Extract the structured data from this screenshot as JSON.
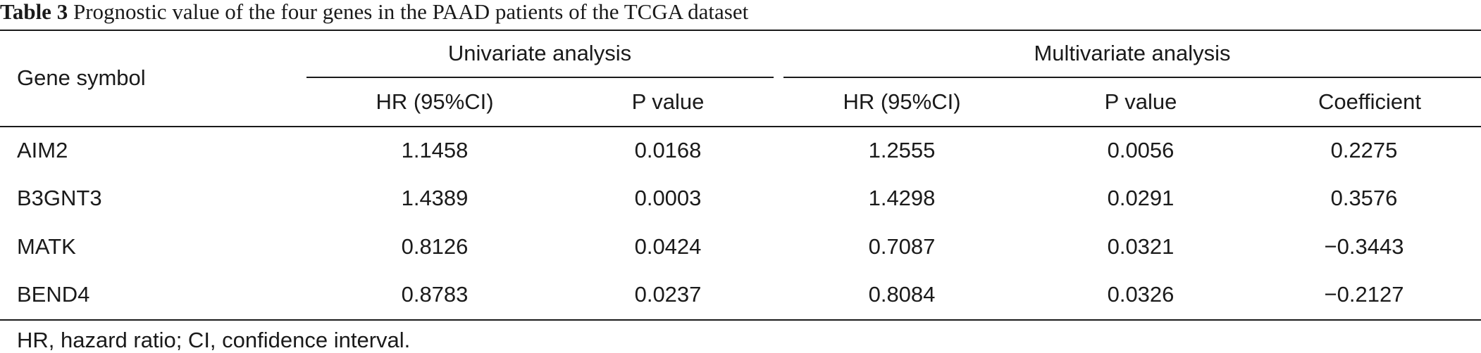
{
  "caption": {
    "label": "Table 3",
    "text": "Prognostic value of the four genes in the PAAD patients of the TCGA dataset"
  },
  "header": {
    "gene_symbol": "Gene symbol",
    "univariate": "Univariate analysis",
    "multivariate": "Multivariate analysis",
    "uni_hr": "HR (95%CI)",
    "uni_p": "P value",
    "multi_hr": "HR (95%CI)",
    "multi_p": "P value",
    "coefficient": "Coefficient"
  },
  "rows": [
    {
      "gene": "AIM2",
      "uni_hr": "1.1458",
      "uni_p": "0.0168",
      "multi_hr": "1.2555",
      "multi_p": "0.0056",
      "coef": "0.2275"
    },
    {
      "gene": "B3GNT3",
      "uni_hr": "1.4389",
      "uni_p": "0.0003",
      "multi_hr": "1.4298",
      "multi_p": "0.0291",
      "coef": "0.3576"
    },
    {
      "gene": "MATK",
      "uni_hr": "0.8126",
      "uni_p": "0.0424",
      "multi_hr": "0.7087",
      "multi_p": "0.0321",
      "coef": "−0.3443"
    },
    {
      "gene": "BEND4",
      "uni_hr": "0.8783",
      "uni_p": "0.0237",
      "multi_hr": "0.8084",
      "multi_p": "0.0326",
      "coef": "−0.2127"
    }
  ],
  "footnote": "HR, hazard ratio; CI, confidence interval."
}
